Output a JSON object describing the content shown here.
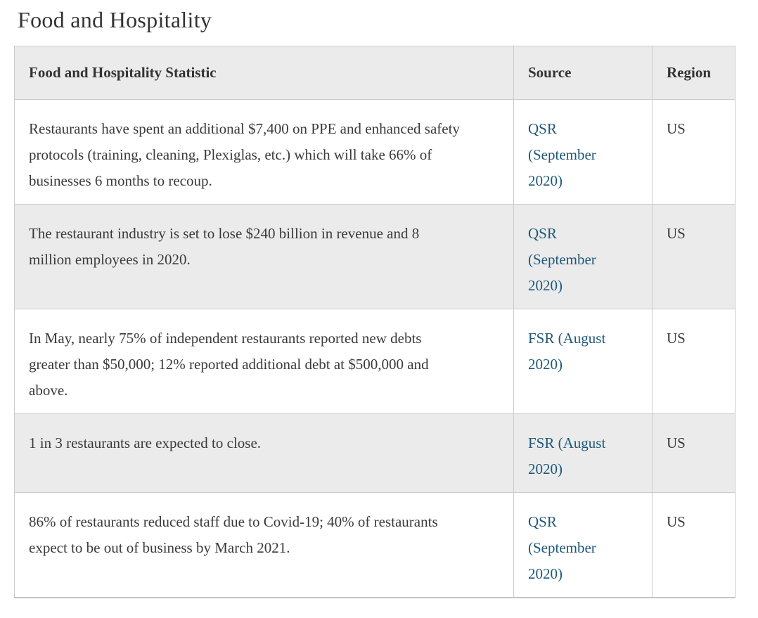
{
  "page": {
    "title": "Food and Hospitality"
  },
  "table": {
    "headers": {
      "statistic": "Food and Hospitality Statistic",
      "source": "Source",
      "region": "Region"
    },
    "rows": [
      {
        "statistic": "Restaurants have spent an additional $7,400 on PPE and enhanced safety protocols (training, cleaning, Plexiglas, etc.) which will take 66% of businesses 6 months to recoup.",
        "source": "QSR (September 2020)",
        "region": "US"
      },
      {
        "statistic": "The restaurant industry is set to lose $240 billion in revenue and 8 million employees in 2020.",
        "source": "QSR (September 2020)",
        "region": "US"
      },
      {
        "statistic": "In May, nearly 75% of independent restaurants reported new debts greater than $50,000; 12% reported additional debt at $500,000 and above.",
        "source": "FSR (August 2020)",
        "region": "US"
      },
      {
        "statistic": "1 in 3 restaurants are expected to close.",
        "source": "FSR (August 2020)",
        "region": "US"
      },
      {
        "statistic": "86% of restaurants reduced staff due to Covid-19; 40% of restaurants expect to be out of business by March 2021.",
        "source": "QSR (September 2020)",
        "region": "US"
      }
    ]
  },
  "colors": {
    "link": "#1e5878",
    "header_bg": "#ebebeb",
    "stripe_bg": "#ebebeb",
    "border": "#cccccc",
    "text": "#3a3a3a",
    "heading_text": "#333333"
  }
}
